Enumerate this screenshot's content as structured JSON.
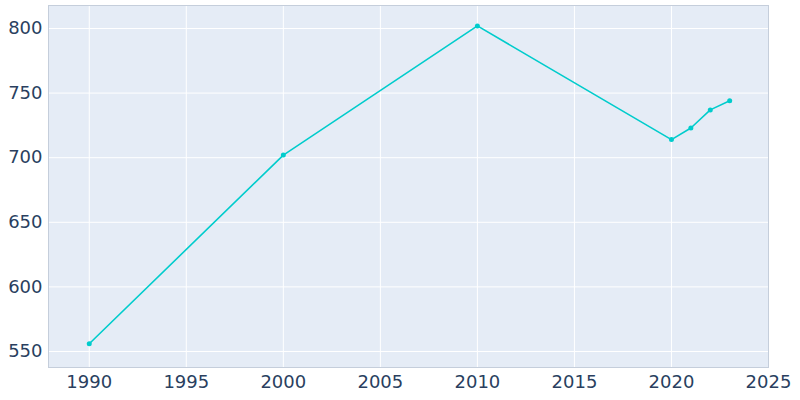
{
  "chart_data": {
    "type": "line",
    "x": [
      1990,
      2000,
      2010,
      2020,
      2021,
      2022,
      2023
    ],
    "values": [
      556,
      702,
      802,
      714,
      723,
      737,
      744
    ],
    "color": "#00cccc",
    "marker": "circle",
    "xlim": [
      1987.9,
      2025
    ],
    "xticks": [
      1990,
      1995,
      2000,
      2005,
      2010,
      2015,
      2020,
      2025
    ],
    "ylim": [
      537.6,
      817.8
    ],
    "yticks": [
      550,
      600,
      650,
      700,
      750,
      800
    ],
    "grid": true
  }
}
